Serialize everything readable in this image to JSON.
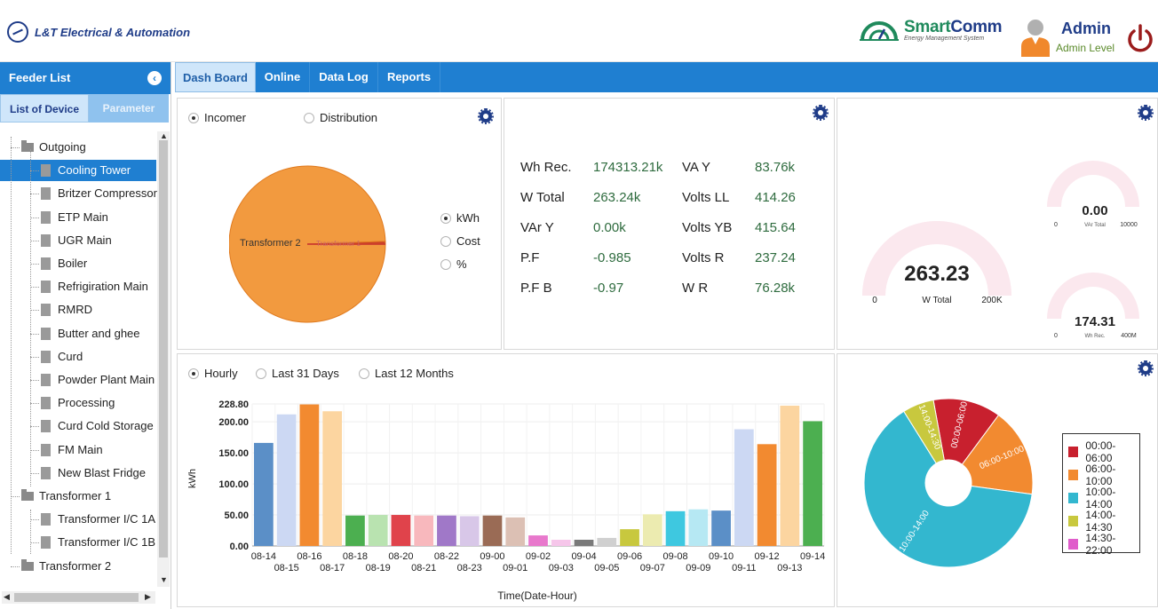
{
  "header": {
    "brand": "L&T Electrical & Automation",
    "product_name_a": "Smart",
    "product_name_b": "Comm",
    "product_sub": "Energy Management System",
    "user_name": "Admin",
    "user_level": "Admin Level"
  },
  "sidebar": {
    "title": "Feeder List",
    "tabs": [
      "List of Device",
      "Parameter"
    ],
    "tree": [
      {
        "label": "Outgoing",
        "kind": "folder"
      },
      {
        "label": "Cooling Tower",
        "kind": "doc",
        "selected": true
      },
      {
        "label": "Britzer Compressor",
        "kind": "doc"
      },
      {
        "label": "ETP Main",
        "kind": "doc"
      },
      {
        "label": "UGR Main",
        "kind": "doc"
      },
      {
        "label": "Boiler",
        "kind": "doc"
      },
      {
        "label": "Refrigiration Main",
        "kind": "doc"
      },
      {
        "label": "RMRD",
        "kind": "doc"
      },
      {
        "label": "Butter and ghee",
        "kind": "doc"
      },
      {
        "label": "Curd",
        "kind": "doc"
      },
      {
        "label": "Powder Plant Main",
        "kind": "doc"
      },
      {
        "label": "Processing",
        "kind": "doc"
      },
      {
        "label": "Curd Cold Storage",
        "kind": "doc"
      },
      {
        "label": "FM Main",
        "kind": "doc"
      },
      {
        "label": "New Blast Fridge",
        "kind": "doc"
      },
      {
        "label": "Transformer 1",
        "kind": "folder"
      },
      {
        "label": "Transformer I/C 1A",
        "kind": "doc"
      },
      {
        "label": "Transformer I/C 1B",
        "kind": "doc"
      },
      {
        "label": "Transformer 2",
        "kind": "folder"
      }
    ]
  },
  "nav": {
    "tabs": [
      "Dash Board",
      "Online",
      "Data Log",
      "Reports"
    ],
    "active": "Dash Board"
  },
  "source_panel": {
    "radios": [
      "Incomer",
      "Distribution"
    ],
    "selected": "Incomer",
    "metric_radios": [
      "kWh",
      "Cost",
      "%"
    ],
    "metric_selected": "kWh",
    "pie_labels": [
      "Transformer 2",
      "Transformer 1"
    ]
  },
  "readings": [
    {
      "label": "Wh Rec.",
      "value": "174313.21k",
      "label2": "VA Y",
      "value2": "83.76k"
    },
    {
      "label": "W Total",
      "value": "263.24k",
      "label2": "Volts LL",
      "value2": "414.26"
    },
    {
      "label": "VAr Y",
      "value": "0.00k",
      "label2": "Volts YB",
      "value2": "415.64"
    },
    {
      "label": "P.F",
      "value": "-0.985",
      "label2": "Volts R",
      "value2": "237.24"
    },
    {
      "label": "P.F B",
      "value": "-0.97",
      "label2": "W R",
      "value2": "76.28k"
    }
  ],
  "gauges": {
    "main": {
      "value": "263.23",
      "label": "W Total",
      "min": "0",
      "max": "200K",
      "fraction": 1.0
    },
    "small1": {
      "value": "0.00",
      "label": "VAr Total",
      "min": "0",
      "max": "10000",
      "fraction": 0.0
    },
    "small2": {
      "value": "174.31",
      "label": "Wh Rec.",
      "min": "0",
      "max": "400M",
      "fraction": 0.0004
    }
  },
  "period_radios": [
    "Hourly",
    "Last 31 Days",
    "Last 12 Months"
  ],
  "period_selected": "Hourly",
  "chart_data": [
    {
      "type": "bar",
      "title": "",
      "xlabel": "Time(Date-Hour)",
      "ylabel": "kWh",
      "ylim": [
        0,
        228.8
      ],
      "ytick_labels": [
        "0.00",
        "50.00",
        "100.00",
        "150.00",
        "200.00",
        "228.80"
      ],
      "ytick_values": [
        0,
        50,
        100,
        150,
        200,
        228.8
      ],
      "categories": [
        "08-14",
        "08-15",
        "08-16",
        "08-17",
        "08-18",
        "08-19",
        "08-20",
        "08-21",
        "08-22",
        "08-23",
        "09-00",
        "09-01",
        "09-02",
        "09-03",
        "09-04",
        "09-05",
        "09-06",
        "09-07",
        "09-08",
        "09-09",
        "09-10",
        "09-11",
        "09-12",
        "09-13",
        "09-14"
      ],
      "values": [
        166,
        212,
        228,
        217,
        49,
        50,
        50,
        49,
        49,
        48,
        49,
        46,
        17,
        10,
        10,
        13,
        27,
        51,
        56,
        59,
        57,
        188,
        164,
        226,
        201
      ],
      "colors": [
        "#5b8fc7",
        "#ccd8f3",
        "#f28a30",
        "#fcd5a0",
        "#4caf50",
        "#b9e3b0",
        "#e0434b",
        "#f8b8bd",
        "#a078c8",
        "#d8c7e8",
        "#9a6b55",
        "#dcc0b4",
        "#e878cc",
        "#f6c6ea",
        "#7a7a7a",
        "#d0d0d0",
        "#c8c83e",
        "#ecebb0",
        "#3ec8e0",
        "#b6e8f3",
        "#5b8fc7",
        "#ccd8f3",
        "#f28a30",
        "#fcd5a0",
        "#4caf50"
      ],
      "grid": true
    },
    {
      "type": "pie",
      "categories": [
        "00:00-06:00",
        "06:00-10:00",
        "10:00-14:00",
        "14:00-14:30",
        "14:30-22:00"
      ],
      "values": [
        13,
        17,
        64,
        6,
        0
      ],
      "colors": [
        "#c8202e",
        "#f28a30",
        "#33b7cf",
        "#c8c83e",
        "#e05ccb"
      ],
      "slice_labels": [
        "00:00-06:00",
        "06:00-10:00",
        "10:00-14:00",
        "14:00-14:30",
        "14:30-22:00"
      ],
      "donut": true,
      "legend": "right"
    },
    {
      "type": "pie",
      "categories": [
        "Transformer 2",
        "Transformer 1"
      ],
      "values": [
        99.6,
        0.4
      ],
      "colors": [
        "#f29a3f",
        "#c62d2d"
      ],
      "legend": "none"
    }
  ]
}
